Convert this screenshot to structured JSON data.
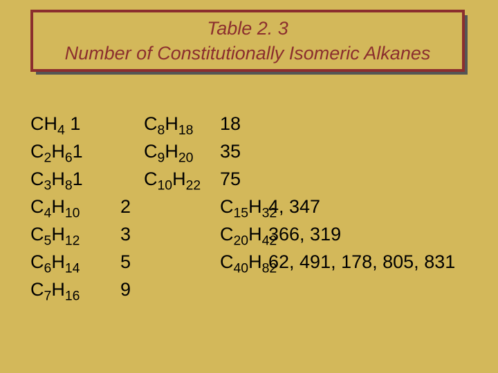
{
  "title": {
    "line1": "Table 2. 3",
    "line2": "Number of Constitutionally Isomeric Alkanes"
  },
  "colors": {
    "background": "#d3b85a",
    "title_border": "#8b2e2e",
    "title_text": "#8b2e2e",
    "shadow": "#555555",
    "body_text": "#000000"
  },
  "typography": {
    "title_fontsize": 27,
    "title_style": "italic",
    "body_fontsize": 27
  },
  "rows": [
    {
      "f1": "CH₄",
      "n1": "1",
      "f2": "C₈H₁₈",
      "n2": "18",
      "f3": "",
      "n3": ""
    },
    {
      "f1": "C₂H₆",
      "n1": "1",
      "f2": "C₉H₂₀",
      "n2": "35",
      "f3": "",
      "n3": ""
    },
    {
      "f1": "C₃H₈",
      "n1": "1",
      "f2": "C₁₀H₂₂",
      "n2": "75",
      "f3": "",
      "n3": ""
    },
    {
      "f1": "C₄H₁₀",
      "n1": "2",
      "f2": "",
      "n2": "",
      "f3": "C₁₅H₃₂",
      "n3": "4, 347"
    },
    {
      "f1": "C₅H₁₂",
      "n1": "3",
      "f2": "",
      "n2": "",
      "f3": "C₂₀H₄₂",
      "n3": "366, 319"
    },
    {
      "f1": "C₆H₁₄",
      "n1": "5",
      "f2": "",
      "n2": "",
      "f3": "C₄₀H₈₂",
      "n3": "62, 491, 178, 805, 831"
    },
    {
      "f1": "C₇H₁₆",
      "n1": "9",
      "f2": "",
      "n2": "",
      "f3": "",
      "n3": ""
    }
  ]
}
